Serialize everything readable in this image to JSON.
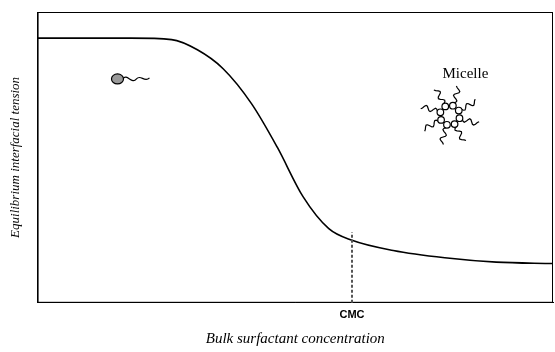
{
  "chart_data": {
    "type": "line",
    "x_label": "Bulk surfactant concentration",
    "y_label": "Equilibrium interfacial tension",
    "annotations": [
      "Micelle"
    ],
    "x": [
      0,
      18,
      26,
      31,
      36,
      41.5,
      46.5,
      51.5,
      56.5,
      61,
      69,
      79,
      89,
      100
    ],
    "values": [
      91,
      91,
      90.5,
      87,
      80.5,
      68.5,
      53.5,
      36.5,
      25.5,
      21.5,
      18,
      15.5,
      14,
      13.5
    ],
    "color": "#000000",
    "line_style": "solid",
    "xlim": [
      0,
      100
    ],
    "ylim": [
      0,
      100
    ],
    "xticks": [
      {
        "value": 61,
        "label": "CMC"
      }
    ],
    "tick_labels": "x",
    "grid": false
  }
}
